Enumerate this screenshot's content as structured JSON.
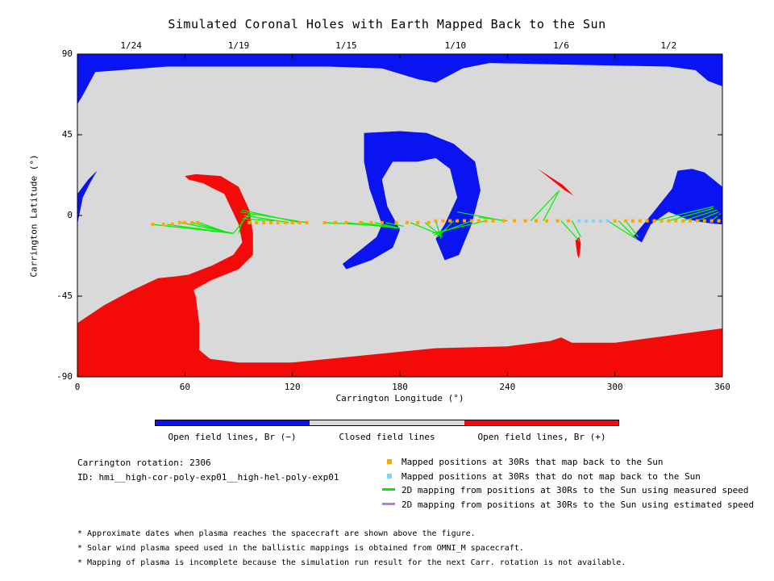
{
  "chart_data": {
    "type": "map",
    "title": "Simulated Coronal Holes with Earth Mapped Back to the Sun",
    "xlabel": "Carrington Longitude (°)",
    "ylabel": "Carrington Latitude (°)",
    "xlim": [
      0,
      360
    ],
    "ylim": [
      -90,
      90
    ],
    "x_ticks": [
      "0",
      "60",
      "120",
      "180",
      "240",
      "300",
      "360"
    ],
    "y_ticks": [
      "90",
      "45",
      "0",
      "-45",
      "-90"
    ],
    "top_dates": [
      {
        "label": "1/24",
        "lon": 30
      },
      {
        "label": "1/19",
        "lon": 90
      },
      {
        "label": "1/15",
        "lon": 150
      },
      {
        "label": "1/10",
        "lon": 211
      },
      {
        "label": "1/6",
        "lon": 270
      },
      {
        "label": "1/2",
        "lon": 330
      }
    ],
    "colorbar": [
      {
        "label": "Open field lines, Br (−)",
        "color": "#0a14f0"
      },
      {
        "label": "Closed field lines",
        "color": "#d9d9d9"
      },
      {
        "label": "Open field lines, Br (+)",
        "color": "#f50a0a"
      }
    ],
    "colors": {
      "negative": "#0a14f0",
      "positive": "#f50a0a",
      "closed": "#d9d9d9",
      "mapped": "#ffa500",
      "unmapped": "#87cefa",
      "measured_line": "#00ee00",
      "estimated_line": "#b57edc"
    },
    "regions": {
      "negative": [
        {
          "name": "north-pole",
          "poly": [
            [
              0,
              90
            ],
            [
              360,
              90
            ],
            [
              360,
              72
            ],
            [
              352,
              75
            ],
            [
              345,
              81
            ],
            [
              330,
              83
            ],
            [
              280,
              84
            ],
            [
              230,
              85
            ],
            [
              215,
              82
            ],
            [
              200,
              74
            ],
            [
              190,
              76
            ],
            [
              170,
              82
            ],
            [
              140,
              83
            ],
            [
              100,
              83
            ],
            [
              50,
              83
            ],
            [
              10,
              80
            ],
            [
              3,
              67
            ],
            [
              0,
              62
            ]
          ]
        },
        {
          "name": "west-edge",
          "poly": [
            [
              0,
              12
            ],
            [
              6,
              20
            ],
            [
              11,
              25
            ],
            [
              7,
              18
            ],
            [
              3,
              10
            ],
            [
              0,
              -5
            ]
          ]
        },
        {
          "name": "center-hole",
          "poly": [
            [
              160,
              46
            ],
            [
              180,
              47
            ],
            [
              195,
              46
            ],
            [
              210,
              40
            ],
            [
              222,
              30
            ],
            [
              225,
              14
            ],
            [
              220,
              -5
            ],
            [
              213,
              -22
            ],
            [
              205,
              -25
            ],
            [
              200,
              -13
            ],
            [
              205,
              -5
            ],
            [
              212,
              10
            ],
            [
              208,
              26
            ],
            [
              200,
              32
            ],
            [
              190,
              30
            ],
            [
              176,
              30
            ],
            [
              170,
              20
            ],
            [
              173,
              5
            ],
            [
              180,
              -8
            ],
            [
              176,
              -18
            ],
            [
              164,
              -25
            ],
            [
              150,
              -30
            ],
            [
              148,
              -27
            ],
            [
              157,
              -20
            ],
            [
              167,
              -12
            ],
            [
              170,
              -5
            ],
            [
              163,
              15
            ],
            [
              160,
              30
            ]
          ]
        },
        {
          "name": "east-hole",
          "poly": [
            [
              335,
              25
            ],
            [
              343,
              26
            ],
            [
              350,
              24
            ],
            [
              355,
              20
            ],
            [
              360,
              16
            ],
            [
              360,
              -5
            ],
            [
              350,
              -4
            ],
            [
              340,
              -2
            ],
            [
              330,
              2
            ],
            [
              320,
              -5
            ],
            [
              315,
              -15
            ],
            [
              310,
              -12
            ],
            [
              320,
              0
            ],
            [
              332,
              15
            ]
          ]
        }
      ],
      "positive": [
        {
          "name": "south-pole",
          "poly": [
            [
              0,
              -60
            ],
            [
              15,
              -50
            ],
            [
              30,
              -42
            ],
            [
              45,
              -35
            ],
            [
              55,
              -34
            ],
            [
              62,
              -33
            ],
            [
              66,
              -45
            ],
            [
              68,
              -60
            ],
            [
              68,
              -75
            ],
            [
              74,
              -80
            ],
            [
              90,
              -82
            ],
            [
              120,
              -82
            ],
            [
              160,
              -78
            ],
            [
              200,
              -74
            ],
            [
              240,
              -73
            ],
            [
              264,
              -70
            ],
            [
              270,
              -68
            ],
            [
              276,
              -71
            ],
            [
              300,
              -71
            ],
            [
              330,
              -67
            ],
            [
              360,
              -63
            ],
            [
              360,
              -90
            ],
            [
              0,
              -90
            ]
          ]
        },
        {
          "name": "center-left",
          "poly": [
            [
              62,
              -33
            ],
            [
              75,
              -28
            ],
            [
              87,
              -22
            ],
            [
              92,
              -15
            ],
            [
              90,
              -5
            ],
            [
              82,
              12
            ],
            [
              70,
              18
            ],
            [
              62,
              20
            ],
            [
              60,
              22
            ],
            [
              66,
              23
            ],
            [
              80,
              22
            ],
            [
              90,
              16
            ],
            [
              96,
              3
            ],
            [
              98,
              -10
            ],
            [
              98,
              -22
            ],
            [
              90,
              -30
            ],
            [
              75,
              -36
            ],
            [
              64,
              -42
            ]
          ]
        },
        {
          "name": "upper-right",
          "poly": [
            [
              257,
              26
            ],
            [
              262,
              22
            ],
            [
              272,
              14
            ],
            [
              277,
              11
            ],
            [
              271,
              17
            ]
          ]
        },
        {
          "name": "lower-right",
          "poly": [
            [
              278,
              -14
            ],
            [
              279,
              -22
            ],
            [
              280,
              -24
            ],
            [
              281,
              -16
            ],
            [
              280,
              -12
            ]
          ]
        }
      ]
    },
    "mapped_points": {
      "orange": [
        [
          42,
          -5
        ],
        [
          48,
          -5
        ],
        [
          53,
          -5
        ],
        [
          57,
          -4
        ],
        [
          60,
          -4
        ],
        [
          64,
          -4
        ],
        [
          67,
          -4
        ],
        [
          96,
          -4
        ],
        [
          100,
          -4
        ],
        [
          104,
          -4
        ],
        [
          108,
          -4
        ],
        [
          112,
          -4
        ],
        [
          116,
          -4
        ],
        [
          120,
          -4
        ],
        [
          124,
          -4
        ],
        [
          128,
          -4
        ],
        [
          138,
          -4
        ],
        [
          144,
          -4
        ],
        [
          150,
          -4
        ],
        [
          158,
          -4
        ],
        [
          164,
          -4
        ],
        [
          170,
          -4
        ],
        [
          178,
          -4
        ],
        [
          184,
          -4
        ],
        [
          190,
          -4
        ],
        [
          196,
          -4
        ],
        [
          200,
          -3
        ],
        [
          204,
          -3
        ],
        [
          208,
          -3
        ],
        [
          212,
          -3
        ],
        [
          216,
          -3
        ],
        [
          220,
          -3
        ],
        [
          224,
          -3
        ],
        [
          228,
          -3
        ],
        [
          232,
          -3
        ],
        [
          238,
          -3
        ],
        [
          244,
          -3
        ],
        [
          250,
          -3
        ],
        [
          256,
          -3
        ],
        [
          262,
          -3
        ],
        [
          268,
          -3
        ],
        [
          274,
          -3
        ],
        [
          300,
          -3
        ],
        [
          306,
          -3
        ],
        [
          310,
          -3
        ],
        [
          314,
          -3
        ],
        [
          318,
          -3
        ],
        [
          322,
          -3
        ],
        [
          326,
          -3
        ],
        [
          330,
          -3
        ],
        [
          334,
          -3
        ],
        [
          338,
          -3
        ],
        [
          342,
          -3
        ],
        [
          346,
          -3
        ],
        [
          350,
          -3
        ],
        [
          354,
          -3
        ],
        [
          358,
          -3
        ]
      ],
      "blue": [
        [
          280,
          -3
        ],
        [
          284,
          -3
        ],
        [
          288,
          -3
        ],
        [
          292,
          -3
        ],
        [
          296,
          -3
        ]
      ]
    },
    "green_lines": [
      [
        [
          42,
          -5
        ],
        [
          87,
          -10
        ]
      ],
      [
        [
          50,
          -5
        ],
        [
          87,
          -10
        ]
      ],
      [
        [
          58,
          -4
        ],
        [
          87,
          -10
        ]
      ],
      [
        [
          64,
          -4
        ],
        [
          86,
          -10
        ]
      ],
      [
        [
          68,
          -4
        ],
        [
          85,
          -10
        ]
      ],
      [
        [
          96,
          1
        ],
        [
          87,
          -10
        ]
      ],
      [
        [
          92,
          -3
        ],
        [
          90,
          -10
        ]
      ],
      [
        [
          100,
          1
        ],
        [
          92,
          -2
        ]
      ],
      [
        [
          110,
          -3
        ],
        [
          94,
          -2
        ]
      ],
      [
        [
          118,
          -4
        ],
        [
          93,
          0
        ]
      ],
      [
        [
          124,
          -4
        ],
        [
          92,
          3
        ]
      ],
      [
        [
          128,
          -4
        ],
        [
          91,
          2
        ]
      ],
      [
        [
          138,
          -4
        ],
        [
          176,
          -6
        ]
      ],
      [
        [
          150,
          -4
        ],
        [
          178,
          -7
        ]
      ],
      [
        [
          158,
          -4
        ],
        [
          179,
          -7
        ]
      ],
      [
        [
          166,
          -4
        ],
        [
          180,
          -7
        ]
      ],
      [
        [
          172,
          -4
        ],
        [
          182,
          -6
        ]
      ],
      [
        [
          186,
          -4
        ],
        [
          203,
          -11
        ]
      ],
      [
        [
          194,
          -4
        ],
        [
          204,
          -12
        ]
      ],
      [
        [
          200,
          -3
        ],
        [
          203,
          -13
        ]
      ],
      [
        [
          210,
          -3
        ],
        [
          201,
          -12
        ]
      ],
      [
        [
          220,
          -3
        ],
        [
          199,
          -11
        ]
      ],
      [
        [
          228,
          -3
        ],
        [
          198,
          -10
        ]
      ],
      [
        [
          212,
          2
        ],
        [
          238,
          -3
        ]
      ],
      [
        [
          224,
          -1
        ],
        [
          240,
          -3
        ]
      ],
      [
        [
          253,
          -3
        ],
        [
          268,
          13
        ]
      ],
      [
        [
          260,
          -3
        ],
        [
          269,
          14
        ]
      ],
      [
        [
          270,
          -3
        ],
        [
          280,
          -14
        ]
      ],
      [
        [
          276,
          -3
        ],
        [
          281,
          -12
        ]
      ],
      [
        [
          296,
          -3
        ],
        [
          310,
          -12
        ]
      ],
      [
        [
          302,
          -3
        ],
        [
          312,
          -13
        ]
      ],
      [
        [
          306,
          -3
        ],
        [
          313,
          -12
        ]
      ],
      [
        [
          322,
          -3
        ],
        [
          355,
          5
        ]
      ],
      [
        [
          330,
          -3
        ],
        [
          355,
          4
        ]
      ],
      [
        [
          338,
          -3
        ],
        [
          357,
          3
        ]
      ],
      [
        [
          346,
          -3
        ],
        [
          358,
          2
        ]
      ],
      [
        [
          354,
          -3
        ],
        [
          359,
          1
        ]
      ]
    ]
  },
  "legend": {
    "items": [
      {
        "label": "Mapped positions at 30Rs that map back to the Sun",
        "color": "#ffa500",
        "kind": "square"
      },
      {
        "label": "Mapped positions at 30Rs that do not map back to the Sun",
        "color": "#87cefa",
        "kind": "square"
      },
      {
        "label": "2D mapping from positions at 30Rs to the Sun using measured speed",
        "color": "#00ee00",
        "kind": "line"
      },
      {
        "label": "2D mapping from positions at 30Rs to the Sun using estimated speed",
        "color": "#b57edc",
        "kind": "line"
      }
    ]
  },
  "info": {
    "rotation": "Carrington rotation: 2306",
    "id": "ID: hmi__high-cor-poly-exp01__high-hel-poly-exp01"
  },
  "footnotes": [
    "* Approximate dates when plasma reaches the spacecraft are shown above the figure.",
    "* Solar wind plasma speed used in the ballistic mappings is obtained from OMNI_M spacecraft.",
    "* Mapping of plasma is incomplete because the simulation run result for the next Carr. rotation is not available."
  ]
}
